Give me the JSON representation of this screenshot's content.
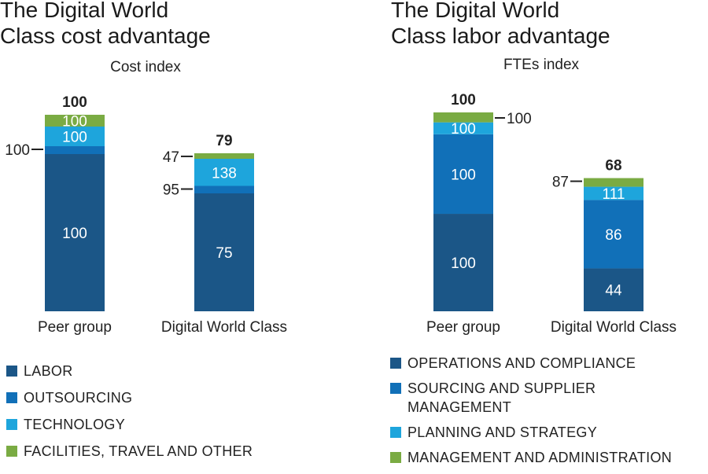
{
  "chart_data": [
    {
      "type": "bar",
      "stacked": true,
      "title": "The Digital World Class cost advantage",
      "title_lines": [
        "The Digital World",
        "Class cost advantage"
      ],
      "ylabel": "Cost index",
      "categories": [
        "Peer group",
        "Digital World Class"
      ],
      "totals": [
        "100",
        "79"
      ],
      "series": [
        {
          "name": "LABOR",
          "color": "#1b5687",
          "peer_share": 80,
          "index": [
            100,
            75
          ],
          "labels": [
            "100",
            "75"
          ],
          "label_pos": [
            "in",
            "in"
          ]
        },
        {
          "name": "OUTSOURCING",
          "color": "#1170b8",
          "peer_share": 4,
          "index": [
            100,
            95
          ],
          "labels": [
            "100",
            "95"
          ],
          "label_pos": [
            "left",
            "left"
          ]
        },
        {
          "name": "TECHNOLOGY",
          "color": "#1ea5dc",
          "peer_share": 10,
          "index": [
            100,
            138
          ],
          "labels": [
            "100",
            "138"
          ],
          "label_pos": [
            "in",
            "in"
          ]
        },
        {
          "name": "FACILITIES, TRAVEL AND OTHER",
          "color": "#7aab43",
          "peer_share": 6,
          "index": [
            100,
            47
          ],
          "labels": [
            "100",
            "47"
          ],
          "label_pos": [
            "in",
            "left"
          ]
        }
      ],
      "legend": "bottom"
    },
    {
      "type": "bar",
      "stacked": true,
      "title": "The Digital World Class labor advantage",
      "title_lines": [
        "The Digital World",
        "Class labor advantage"
      ],
      "ylabel": "FTEs index",
      "categories": [
        "Peer group",
        "Digital World Class"
      ],
      "totals": [
        "100",
        "68"
      ],
      "series": [
        {
          "name": "OPERATIONS AND COMPLIANCE",
          "color": "#1b5687",
          "peer_share": 49,
          "index": [
            100,
            44
          ],
          "labels": [
            "100",
            "44"
          ],
          "label_pos": [
            "in",
            "in"
          ]
        },
        {
          "name": "SOURCING AND SUPPLIER MANAGEMENT",
          "color": "#1170b8",
          "peer_share": 40,
          "index": [
            100,
            86
          ],
          "labels": [
            "100",
            "86"
          ],
          "label_pos": [
            "in",
            "in"
          ]
        },
        {
          "name": "PLANNING AND STRATEGY",
          "color": "#1ea5dc",
          "peer_share": 6,
          "index": [
            100,
            111
          ],
          "labels": [
            "100",
            "111"
          ],
          "label_pos": [
            "in",
            "in"
          ]
        },
        {
          "name": "MANAGEMENT AND ADMINISTRATION",
          "color": "#7aab43",
          "peer_share": 5,
          "index": [
            100,
            87
          ],
          "labels": [
            "100",
            "87"
          ],
          "label_pos": [
            "right",
            "left"
          ]
        }
      ],
      "legend": "bottom"
    }
  ]
}
